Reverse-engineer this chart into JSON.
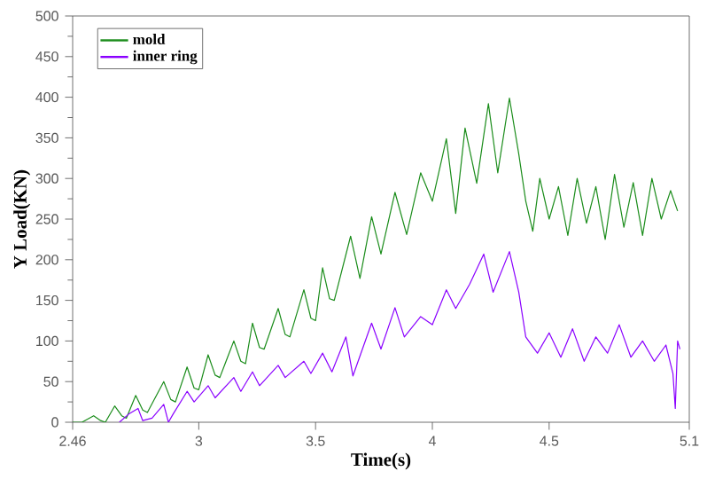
{
  "chart_data": {
    "type": "line",
    "xlabel": "Time(s)",
    "ylabel": "Y Load(KN)",
    "xlim": [
      2.46,
      5.1
    ],
    "ylim": [
      0,
      500
    ],
    "xticks": [
      2.46,
      3,
      3.5,
      4,
      4.5,
      5.1
    ],
    "yticks": [
      0,
      50,
      100,
      150,
      200,
      250,
      300,
      350,
      400,
      450,
      500
    ],
    "legend": "top left",
    "series": [
      {
        "name": "mold",
        "color": "#1a8c1a",
        "x": [
          2.46,
          2.5,
          2.55,
          2.58,
          2.6,
          2.64,
          2.67,
          2.69,
          2.73,
          2.76,
          2.78,
          2.85,
          2.88,
          2.9,
          2.95,
          2.98,
          3.0,
          3.04,
          3.07,
          3.09,
          3.15,
          3.18,
          3.2,
          3.23,
          3.26,
          3.28,
          3.34,
          3.37,
          3.39,
          3.45,
          3.48,
          3.5,
          3.53,
          3.56,
          3.58,
          3.65,
          3.69,
          3.74,
          3.78,
          3.84,
          3.89,
          3.95,
          4.0,
          4.06,
          4.1,
          4.14,
          4.19,
          4.24,
          4.28,
          4.33,
          4.37,
          4.4,
          4.43,
          4.46,
          4.5,
          4.54,
          4.58,
          4.62,
          4.66,
          4.7,
          4.74,
          4.78,
          4.82,
          4.86,
          4.9,
          4.94,
          4.98,
          5.02,
          5.05
        ],
        "values": [
          0,
          0,
          8,
          2,
          0,
          20,
          8,
          5,
          33,
          15,
          12,
          50,
          28,
          25,
          68,
          42,
          40,
          83,
          58,
          55,
          100,
          75,
          72,
          122,
          92,
          90,
          140,
          108,
          105,
          163,
          128,
          125,
          190,
          152,
          150,
          229,
          177,
          253,
          207,
          283,
          231,
          307,
          272,
          349,
          257,
          362,
          294,
          392,
          307,
          399,
          330,
          272,
          235,
          300,
          250,
          290,
          230,
          300,
          245,
          290,
          225,
          305,
          240,
          295,
          230,
          300,
          250,
          285,
          260
        ]
      },
      {
        "name": "inner ring",
        "color": "#8a00ff",
        "x": [
          2.66,
          2.7,
          2.74,
          2.76,
          2.8,
          2.85,
          2.87,
          2.89,
          2.95,
          2.98,
          3.04,
          3.07,
          3.15,
          3.18,
          3.23,
          3.26,
          3.34,
          3.37,
          3.45,
          3.48,
          3.53,
          3.57,
          3.63,
          3.66,
          3.74,
          3.78,
          3.84,
          3.88,
          3.95,
          4.0,
          4.06,
          4.1,
          4.16,
          4.22,
          4.26,
          4.33,
          4.37,
          4.4,
          4.45,
          4.5,
          4.55,
          4.6,
          4.65,
          4.7,
          4.75,
          4.8,
          4.85,
          4.9,
          4.95,
          5.0,
          5.03,
          5.04,
          5.05,
          5.06
        ],
        "values": [
          0,
          10,
          17,
          2,
          5,
          22,
          0,
          10,
          38,
          25,
          45,
          30,
          55,
          38,
          62,
          45,
          70,
          55,
          75,
          60,
          85,
          62,
          105,
          57,
          122,
          90,
          141,
          105,
          130,
          120,
          163,
          140,
          170,
          207,
          160,
          210,
          160,
          105,
          85,
          110,
          80,
          115,
          75,
          105,
          85,
          120,
          80,
          100,
          75,
          95,
          60,
          17,
          100,
          90
        ]
      }
    ]
  }
}
